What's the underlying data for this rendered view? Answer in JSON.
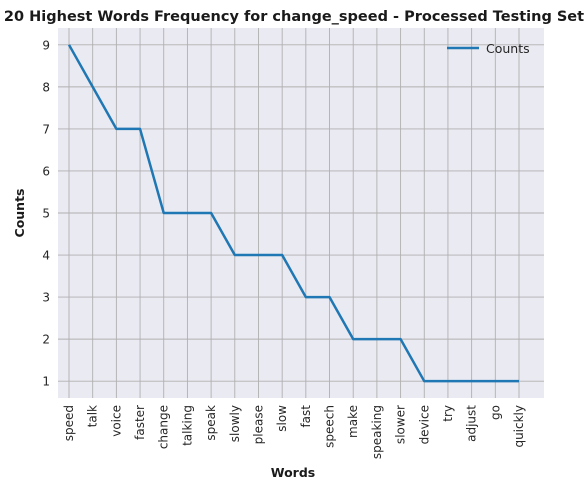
{
  "chart_data": {
    "type": "line",
    "title": "20 Highest Words Frequency for change_speed - Processed Testing Set",
    "xlabel": "Words",
    "ylabel": "Counts",
    "categories": [
      "speed",
      "talk",
      "voice",
      "faster",
      "change",
      "talking",
      "speak",
      "slowly",
      "please",
      "slow",
      "fast",
      "speech",
      "make",
      "speaking",
      "slower",
      "device",
      "try",
      "adjust",
      "go",
      "quickly"
    ],
    "series": [
      {
        "name": "Counts",
        "values": [
          9,
          8,
          7,
          7,
          5,
          5,
          5,
          4,
          4,
          4,
          3,
          3,
          2,
          2,
          2,
          1,
          1,
          1,
          1,
          1
        ]
      }
    ],
    "yticks": [
      1,
      2,
      3,
      4,
      5,
      6,
      7,
      8,
      9
    ],
    "ylim": [
      0.6,
      9.4
    ],
    "grid": true,
    "legend": "top-right",
    "colors": {
      "line": "#1f77b4",
      "plot_bg": "#eaeaf2",
      "grid": "#b0b0b0"
    }
  }
}
